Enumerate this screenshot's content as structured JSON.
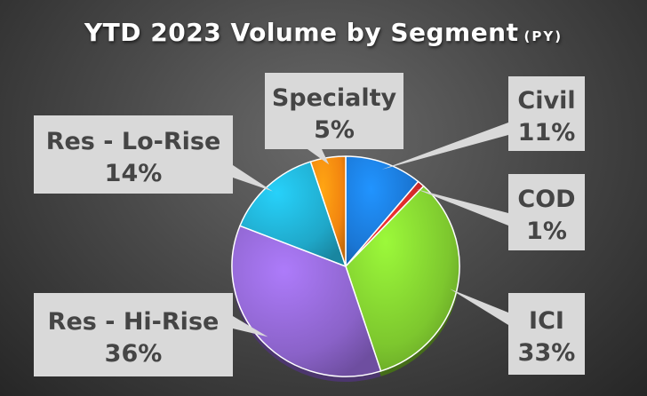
{
  "chart_data": {
    "type": "pie",
    "title": "YTD 2023 Volume by Segment",
    "subtitle": "(PY)",
    "slices": [
      {
        "label": "Civil",
        "value": 11,
        "percent_label": "11%",
        "color": "#1a76d4"
      },
      {
        "label": "COD",
        "value": 1,
        "percent_label": "1%",
        "color": "#d42a2a"
      },
      {
        "label": "ICI",
        "value": 33,
        "percent_label": "33%",
        "color": "#7dc72e"
      },
      {
        "label": "Res - Hi-Rise",
        "value": 36,
        "percent_label": "36%",
        "color": "#8a62c8"
      },
      {
        "label": "Res - Lo-Rise",
        "value": 14,
        "percent_label": "14%",
        "color": "#1fa7c8"
      },
      {
        "label": "Specialty",
        "value": 5,
        "percent_label": "5%",
        "color": "#f2840f"
      }
    ],
    "callout_color": "#d9d9d9"
  }
}
